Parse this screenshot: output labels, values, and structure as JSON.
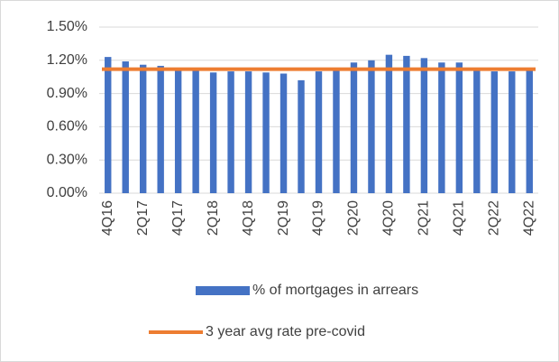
{
  "chart_data": {
    "type": "bar_line",
    "categories": [
      "4Q16",
      null,
      "2Q17",
      null,
      "4Q17",
      null,
      "2Q18",
      null,
      "4Q18",
      null,
      "2Q19",
      null,
      "4Q19",
      null,
      "2Q20",
      null,
      "4Q20",
      null,
      "2Q21",
      null,
      "4Q21",
      null,
      "2Q22",
      null,
      "4Q22"
    ],
    "series": [
      {
        "name": "% of mortgages in arrears",
        "type": "bar",
        "color": "#4472c4",
        "values": [
          1.23,
          1.19,
          1.16,
          1.15,
          1.12,
          1.11,
          1.09,
          1.1,
          1.1,
          1.09,
          1.08,
          1.02,
          1.1,
          1.11,
          1.18,
          1.2,
          1.25,
          1.24,
          1.22,
          1.18,
          1.18,
          1.12,
          1.1,
          1.1,
          1.11
        ]
      },
      {
        "name": "3 year avg rate pre-covid",
        "type": "line",
        "color": "#ed7d31",
        "values": [
          1.12,
          1.12,
          1.12,
          1.12,
          1.12,
          1.12,
          1.12,
          1.12,
          1.12,
          1.12,
          1.12,
          1.12,
          1.12,
          1.12,
          1.12,
          1.12,
          1.12,
          1.12,
          1.12,
          1.12,
          1.12,
          1.12,
          1.12,
          1.12,
          1.12
        ]
      }
    ],
    "ylim": [
      0,
      1.5
    ],
    "yticks": [
      {
        "value": 0,
        "label": "0.00%"
      },
      {
        "value": 0.3,
        "label": "0.30%"
      },
      {
        "value": 0.6,
        "label": "0.60%"
      },
      {
        "value": 0.9,
        "label": "0.90%"
      },
      {
        "value": 1.2,
        "label": "1.20%"
      },
      {
        "value": 1.5,
        "label": "1.50%"
      }
    ],
    "grid": true,
    "legend": "bottom"
  }
}
